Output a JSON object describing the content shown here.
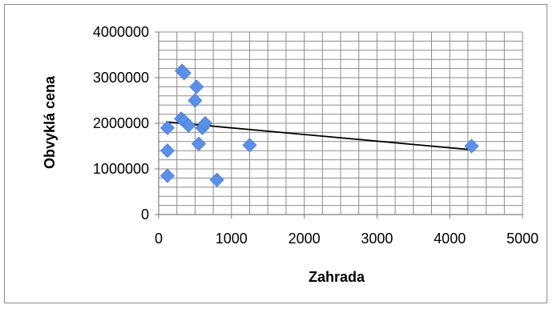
{
  "chart_data": {
    "type": "scatter",
    "title": "",
    "xlabel": "Zahrada",
    "ylabel": "Obvyklá cena",
    "xlim": [
      0,
      5000
    ],
    "ylim": [
      0,
      4000000
    ],
    "x_ticks": [
      "0",
      "1000",
      "2000",
      "3000",
      "4000",
      "5000"
    ],
    "y_ticks": [
      "0",
      "1000000",
      "2000000",
      "3000000",
      "4000000"
    ],
    "grid": true,
    "legend": "none",
    "marker_color": "#5B8FE8",
    "trendline_color": "#000000",
    "trendline": {
      "x": [
        100,
        4300
      ],
      "y": [
        2030000,
        1420000
      ]
    },
    "points": [
      {
        "x": 320,
        "y": 3150000
      },
      {
        "x": 350,
        "y": 3100000
      },
      {
        "x": 520,
        "y": 2800000
      },
      {
        "x": 500,
        "y": 2500000
      },
      {
        "x": 310,
        "y": 2100000
      },
      {
        "x": 350,
        "y": 2050000
      },
      {
        "x": 410,
        "y": 1950000
      },
      {
        "x": 600,
        "y": 1900000
      },
      {
        "x": 640,
        "y": 2000000
      },
      {
        "x": 120,
        "y": 1900000
      },
      {
        "x": 550,
        "y": 1550000
      },
      {
        "x": 1250,
        "y": 1520000
      },
      {
        "x": 120,
        "y": 1400000
      },
      {
        "x": 120,
        "y": 850000
      },
      {
        "x": 800,
        "y": 760000
      },
      {
        "x": 4300,
        "y": 1500000
      }
    ]
  }
}
